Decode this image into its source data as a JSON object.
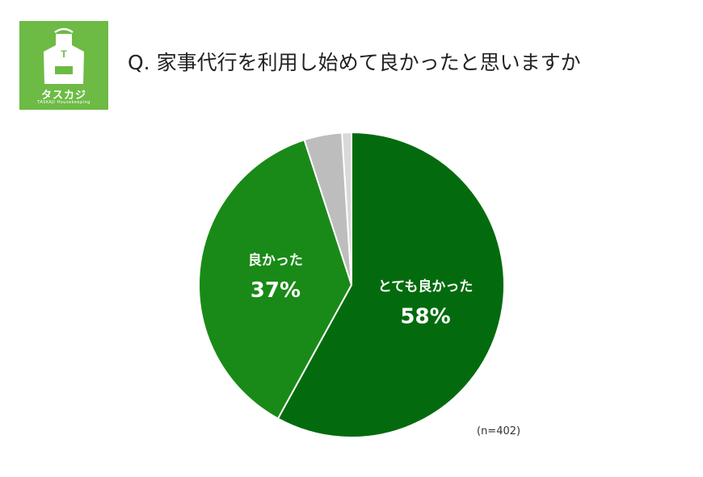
{
  "logo": {
    "name": "タスカジ",
    "sub": "TASKAJI Housekeeping",
    "apron_letter": "T",
    "bg_color": "#6dbb45"
  },
  "title": "Q. 家事代行を利用し始めて良かったと思いますか",
  "chart_data": {
    "type": "pie",
    "title": "Q. 家事代行を利用し始めて良かったと思いますか",
    "slices": [
      {
        "label": "とても良かった",
        "value": 58,
        "display": "58%",
        "color": "#036b0d"
      },
      {
        "label": "良かった",
        "value": 37,
        "display": "37%",
        "color": "#198a17"
      },
      {
        "label": "",
        "value": 4,
        "display": "",
        "color": "#bdbdbd"
      },
      {
        "label": "",
        "value": 1,
        "display": "",
        "color": "#d9d9d9"
      }
    ],
    "start_angle_deg": 0,
    "direction": "clockwise",
    "note": "(n=402)"
  }
}
